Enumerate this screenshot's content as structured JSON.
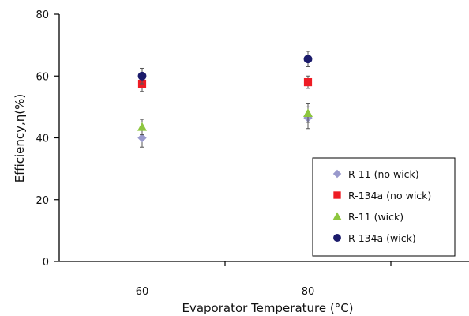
{
  "chart_data": {
    "type": "scatter",
    "title": "",
    "xlabel": "Evaporator Temperature (°C)",
    "ylabel": "Efficiency,η(%)",
    "xlim": [
      50,
      100
    ],
    "ylim": [
      0,
      80
    ],
    "xticks": [
      60,
      80
    ],
    "xtick_labels": [
      "60",
      "80"
    ],
    "yticks": [
      0,
      20,
      40,
      60,
      80
    ],
    "ytick_labels": [
      "0",
      "20",
      "40",
      "60",
      "80"
    ],
    "grid": false,
    "legend_position": "bottom-right",
    "series": [
      {
        "name": "R-11 (no wick)",
        "marker": "diamond",
        "color": "#9999cc",
        "x": [
          60,
          80
        ],
        "y": [
          40,
          46.5
        ],
        "err": [
          3,
          3.5
        ]
      },
      {
        "name": "R-134a (no wick)",
        "marker": "square",
        "color": "#ee1c24",
        "x": [
          60,
          80
        ],
        "y": [
          57.5,
          58
        ],
        "err": [
          2.5,
          2
        ]
      },
      {
        "name": "R-11 (wick)",
        "marker": "triangle",
        "color": "#8dc63f",
        "x": [
          60,
          80
        ],
        "y": [
          43.5,
          48
        ],
        "err": [
          2.5,
          3
        ]
      },
      {
        "name": "R-134a (wick)",
        "marker": "circle",
        "color": "#1b1b6b",
        "x": [
          60,
          80
        ],
        "y": [
          60,
          65.5
        ],
        "err": [
          2.5,
          2.5
        ]
      }
    ]
  }
}
